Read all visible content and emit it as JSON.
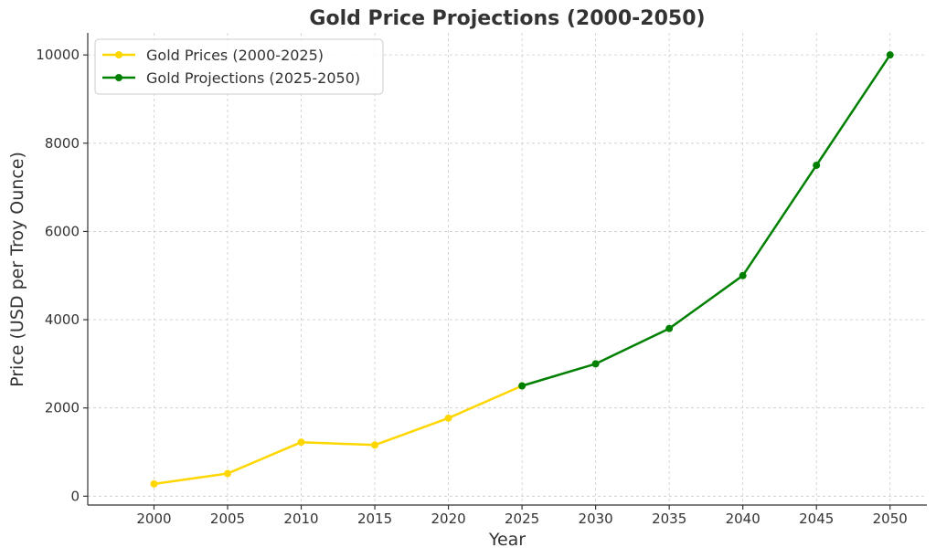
{
  "chart_data": {
    "type": "line",
    "title": "Gold Price Projections (2000-2050)",
    "xlabel": "Year",
    "ylabel": "Price (USD per Troy Ounce)",
    "xlim": [
      1995.5,
      2052.5
    ],
    "ylim": [
      -200,
      10500
    ],
    "x_ticks": [
      2000,
      2005,
      2010,
      2015,
      2020,
      2025,
      2030,
      2035,
      2040,
      2045,
      2050
    ],
    "y_ticks": [
      0,
      2000,
      4000,
      6000,
      8000,
      10000
    ],
    "grid": true,
    "legend_position": "top-left",
    "series": [
      {
        "name": "Gold Prices (2000-2025)",
        "color": "#FFD700",
        "marker": "circle",
        "x": [
          2000,
          2005,
          2010,
          2015,
          2020,
          2025
        ],
        "values": [
          279,
          513,
          1224,
          1160,
          1770,
          2500
        ]
      },
      {
        "name": "Gold Projections (2025-2050)",
        "color": "#008000",
        "marker": "circle",
        "x": [
          2025,
          2030,
          2035,
          2040,
          2045,
          2050
        ],
        "values": [
          2500,
          3000,
          3800,
          5000,
          7500,
          10000
        ]
      }
    ]
  }
}
